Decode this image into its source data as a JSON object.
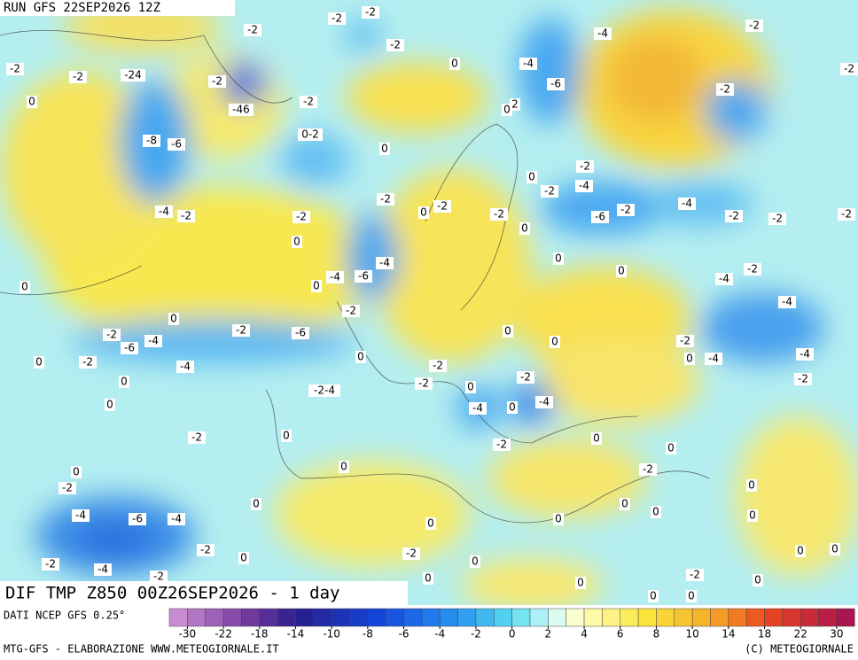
{
  "header": {
    "run": "RUN GFS 22SEP2026 12Z"
  },
  "map": {
    "title": "DIF TMP Z850 00Z26SEP2026 - 1 day",
    "contour_labels": [
      "-2",
      "-2",
      "-2",
      "-2",
      "-4",
      "-2",
      "0",
      "-2",
      "-2",
      "-24",
      "-2",
      "0",
      "-4",
      "-6",
      "-2",
      "-2",
      "-2",
      "-46",
      "2",
      "0",
      "-8",
      "-6",
      "0-2",
      "0",
      "-2",
      "0",
      "-2",
      "-4",
      "-2",
      "-4",
      "-2",
      "-2",
      "0",
      "-2",
      "-2",
      "-6",
      "-2",
      "-4",
      "-2",
      "-2",
      "-2",
      "0",
      "0",
      "0",
      "0",
      "-4",
      "-4",
      "-6",
      "0",
      "0",
      "-2",
      "-4",
      "-4",
      "-2",
      "0",
      "-2",
      "-6",
      "0",
      "0",
      "-2",
      "-6",
      "-4",
      "-2",
      "0",
      "-4",
      "-4",
      "-2",
      "0",
      "-4",
      "0",
      "-2",
      "-2",
      "0",
      "-2-4",
      "-2",
      "0",
      "-2",
      "-4",
      "-4",
      "0",
      "-2",
      "0",
      "0",
      "0",
      "-2",
      "0",
      "0",
      "0",
      "-2",
      "-2",
      "0",
      "0",
      "0",
      "-4",
      "-6",
      "-4",
      "0",
      "0",
      "0",
      "0",
      "-2",
      "0",
      "-2",
      "0",
      "0",
      "0",
      "-2",
      "-4",
      "-2",
      "-2",
      "0",
      "0",
      "0",
      "0",
      "0"
    ]
  },
  "legend": {
    "source": "DATI NCEP GFS 0.25°",
    "ticks": [
      -30,
      -22,
      -18,
      -14,
      -10,
      -8,
      -6,
      -4,
      -2,
      0,
      2,
      4,
      6,
      8,
      10,
      14,
      18,
      22,
      30
    ]
  },
  "footer": {
    "left": "MTG-GFS - ELABORAZIONE WWW.METEOGIORNALE.IT",
    "right": "(C) METEOGIORNALE"
  }
}
